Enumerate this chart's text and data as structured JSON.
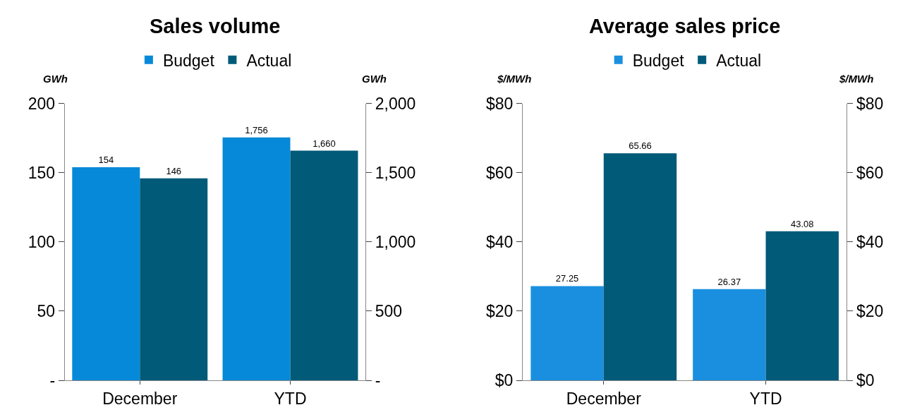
{
  "chart_data": [
    {
      "type": "bar",
      "title": "Sales volume",
      "categories": [
        "December",
        "YTD"
      ],
      "ylabel": "GWh",
      "y2label": "GWh",
      "ylim": [
        0,
        200
      ],
      "yticks": [
        {
          "value": 0,
          "label": "-"
        },
        50,
        100,
        150,
        200
      ],
      "y2lim": [
        0,
        2000
      ],
      "y2ticks": [
        {
          "value": 0,
          "label": "-"
        },
        {
          "value": 500,
          "label": "500"
        },
        {
          "value": 1000,
          "label": "1,000"
        },
        {
          "value": 1500,
          "label": "1,500"
        },
        {
          "value": 2000,
          "label": "2,000"
        }
      ],
      "legend": "top",
      "series": [
        {
          "name": "Budget",
          "color": "#0689d8",
          "values": [
            154,
            null
          ],
          "value_labels": [
            "154",
            null
          ]
        },
        {
          "name": "Actual",
          "color": "#005a78",
          "values": [
            146,
            null
          ],
          "value_labels": [
            "146",
            null
          ]
        },
        {
          "color": "#0689d8",
          "axis": "y2",
          "values": [
            null,
            1756
          ],
          "value_labels": [
            null,
            "1,756"
          ]
        },
        {
          "color": "#005a78",
          "axis": "y2",
          "values": [
            null,
            1660
          ],
          "value_labels": [
            null,
            "1,660"
          ]
        }
      ]
    },
    {
      "type": "bar",
      "title": "Average sales price",
      "categories": [
        "December",
        "YTD"
      ],
      "ylabel": "$/MWh",
      "y2label": "$/MWh",
      "ylim": [
        0,
        80
      ],
      "yticks": [
        {
          "value": 0,
          "label": "$0"
        },
        {
          "value": 20,
          "label": "$20"
        },
        {
          "value": 40,
          "label": "$40"
        },
        {
          "value": 60,
          "label": "$60"
        },
        {
          "value": 80,
          "label": "$80"
        }
      ],
      "y2lim": [
        0,
        80
      ],
      "y2ticks": [
        {
          "value": 0,
          "label": "$0"
        },
        {
          "value": 20,
          "label": "$20"
        },
        {
          "value": 40,
          "label": "$40"
        },
        {
          "value": 60,
          "label": "$60"
        },
        {
          "value": 80,
          "label": "$80"
        }
      ],
      "legend": "top",
      "data_labels": true,
      "series": [
        {
          "name": "Budget",
          "color": "#1a8fe0",
          "values": [
            27.25,
            26.37
          ]
        },
        {
          "name": "Actual",
          "color": "#005a78",
          "values": [
            65.66,
            43.08
          ]
        }
      ]
    }
  ]
}
